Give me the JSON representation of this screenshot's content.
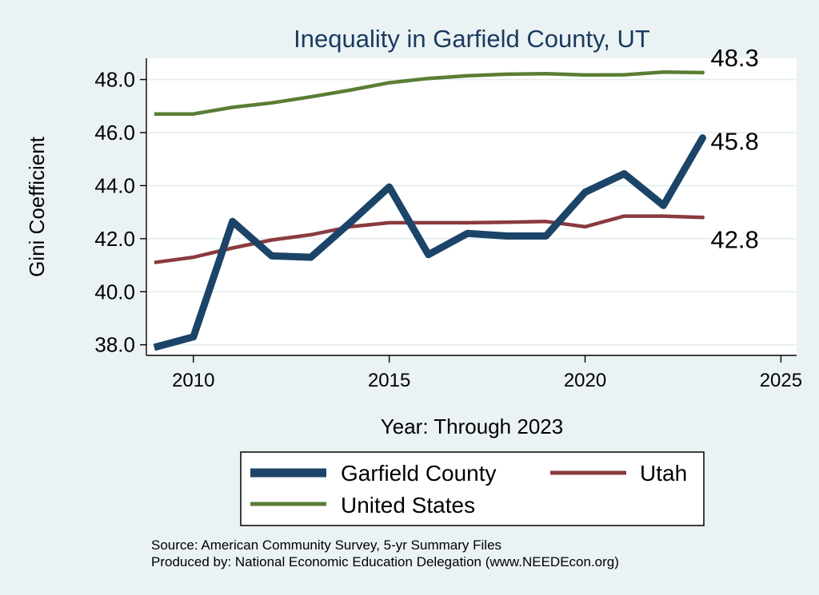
{
  "chart_data": {
    "type": "line",
    "title": "Inequality in Garfield County, UT",
    "xlabel": "Year: Through 2023",
    "ylabel": "Gini Coefficient",
    "xlim": [
      2008.8,
      2025.4
    ],
    "ylim": [
      37.6,
      48.8
    ],
    "xticks": [
      2010,
      2015,
      2020,
      2025
    ],
    "yticks": [
      38,
      40,
      42,
      44,
      46,
      48
    ],
    "ytick_labels": [
      "38.0",
      "40.0",
      "42.0",
      "44.0",
      "46.0",
      "48.0"
    ],
    "grid": true,
    "x": [
      2009,
      2010,
      2011,
      2012,
      2013,
      2014,
      2015,
      2016,
      2017,
      2018,
      2019,
      2020,
      2021,
      2022,
      2023
    ],
    "series": [
      {
        "name": "Garfield County",
        "color": "#1b4468",
        "values": [
          37.9,
          38.3,
          42.65,
          41.35,
          41.3,
          42.6,
          43.95,
          41.4,
          42.2,
          42.1,
          42.1,
          43.75,
          44.45,
          43.25,
          45.8
        ],
        "end_label": "45.8"
      },
      {
        "name": "Utah",
        "color": "#8a3b3f",
        "values": [
          41.1,
          41.3,
          41.65,
          41.95,
          42.15,
          42.45,
          42.6,
          42.6,
          42.6,
          42.62,
          42.65,
          42.45,
          42.85,
          42.85,
          42.8
        ],
        "end_label": "42.8"
      },
      {
        "name": "United States",
        "color": "#5a7d34",
        "values": [
          46.7,
          46.7,
          46.95,
          47.12,
          47.35,
          47.6,
          47.88,
          48.04,
          48.14,
          48.2,
          48.22,
          48.17,
          48.18,
          48.28,
          48.26
        ],
        "end_label": "48.3"
      }
    ],
    "legend": {
      "placement": "bottom",
      "entries": [
        "Garfield County",
        "Utah",
        "United States"
      ]
    },
    "notes": [
      "Source: American Community Survey, 5-yr Summary Files",
      "Produced by: National Economic Education Delegation (www.NEEDEcon.org)"
    ]
  }
}
